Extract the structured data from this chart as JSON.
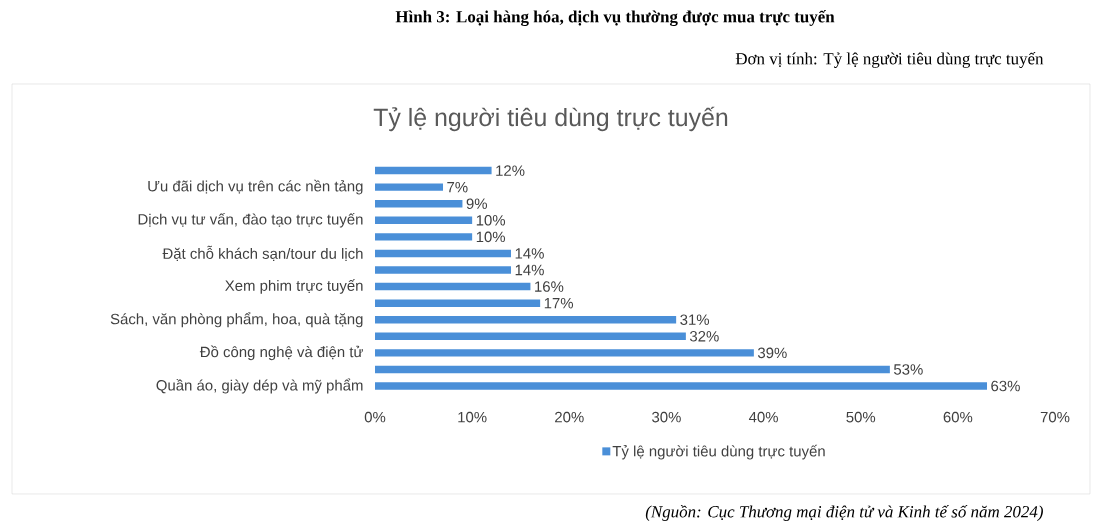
{
  "chart_data": {
    "type": "bar",
    "orientation": "horizontal",
    "title": "Hình 3: Loại hàng hóa, dịch vụ thường được mua trực tuyến",
    "subtitle": "Đơn vị tính: Tỷ lệ người tiêu dùng trực tuyến",
    "annotations": [
      "Tỷ lệ người tiêu dùng trực tuyến",
      "(Nguồn: Cục Thương mại điện tử và Kinh tế số năm 2024)"
    ],
    "categories": [
      null,
      "Ưu đãi dịch vụ trên các nền tảng",
      null,
      "Dịch vụ tư vấn, đào tạo trực tuyến",
      null,
      "Đặt chỗ khách sạn/tour du lịch",
      null,
      "Xem phim trực tuyến",
      null,
      "Sách, văn phòng phẩm, hoa, quà tặng",
      null,
      "Đồ công nghệ và điện tử",
      null,
      "Quần áo, giày dép và mỹ phẩm"
    ],
    "series": [
      {
        "name": "Tỷ lệ người tiêu dùng trực tuyến",
        "color": "#4a8fd8",
        "values": [
          12,
          7,
          9,
          10,
          10,
          14,
          14,
          16,
          17,
          31,
          32,
          39,
          53,
          63
        ],
        "value_labels": [
          "12%",
          "7%",
          "9%",
          "10%",
          "10%",
          "14%",
          "14%",
          "16%",
          "17%",
          "31%",
          "32%",
          "39%",
          "53%",
          "63%"
        ]
      }
    ],
    "xlim": [
      0,
      70
    ],
    "xticks": [
      {
        "value": 0,
        "label": "0%"
      },
      {
        "value": 10,
        "label": "10%"
      },
      {
        "value": 20,
        "label": "20%"
      },
      {
        "value": 30,
        "label": "30%"
      },
      {
        "value": 40,
        "label": "40%"
      },
      {
        "value": 50,
        "label": "50%"
      },
      {
        "value": 60,
        "label": "60%"
      },
      {
        "value": 70,
        "label": "70%"
      }
    ],
    "legend": "bottom"
  }
}
